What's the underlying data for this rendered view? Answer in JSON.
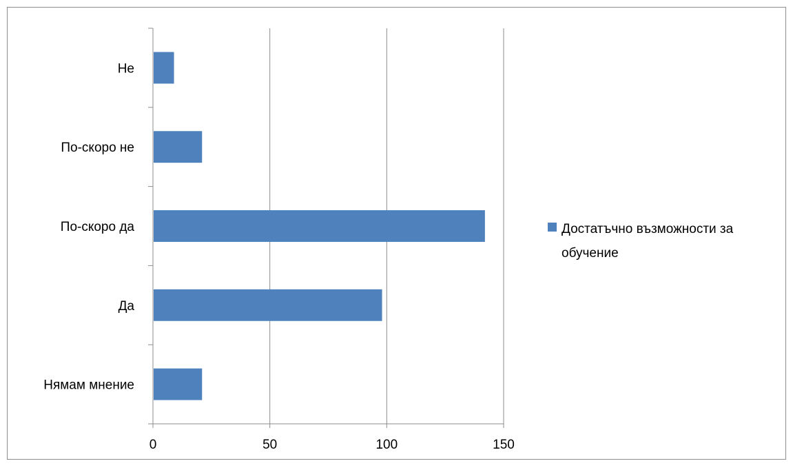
{
  "chart_data": {
    "type": "bar",
    "orientation": "horizontal",
    "categories": [
      "Нямам мнение",
      "Да",
      "По-скоро да",
      "По-скоро не",
      "Не"
    ],
    "series": [
      {
        "name": "Достатъчно възможности за обучение",
        "name_lines": [
          "Достатъчно възможности за",
          "обучение"
        ],
        "values": [
          21,
          98,
          142,
          21,
          9
        ],
        "color": "#4F81BD"
      }
    ],
    "xticks": [
      "0",
      "50",
      "100",
      "150"
    ],
    "xlim": [
      0,
      150
    ],
    "grid": "vertical",
    "legend": "right"
  }
}
